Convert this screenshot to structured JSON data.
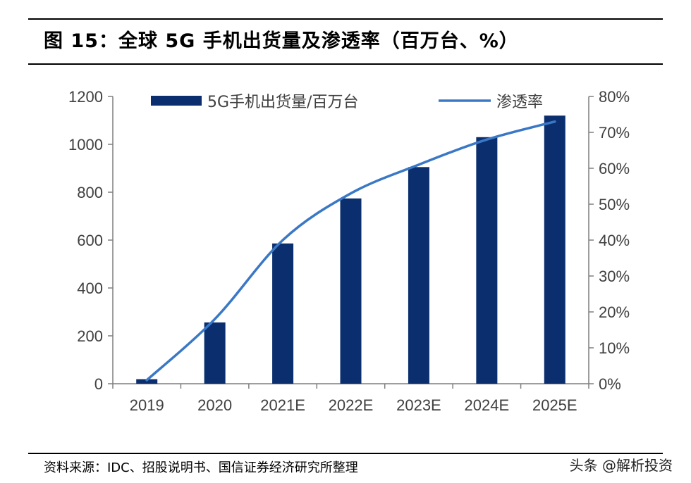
{
  "header": {
    "title": "图 15：全球 5G 手机出货量及渗透率（百万台、%）"
  },
  "footer": {
    "source": "资料来源：IDC、招股说明书、国信证券经济研究所整理",
    "watermark": "头条 @解析投资"
  },
  "colors": {
    "bar": "#0b2f6e",
    "line": "#3a78c6",
    "axis": "#7f7f7f",
    "text": "#404040"
  },
  "chart_data": {
    "type": "bar",
    "categories": [
      "2019",
      "2020",
      "2021E",
      "2022E",
      "2023E",
      "2024E",
      "2025E"
    ],
    "series": [
      {
        "name": "5G手机出货量/百万台",
        "type": "bar",
        "axis": "left",
        "values": [
          19,
          256,
          586,
          774,
          905,
          1030,
          1120
        ]
      },
      {
        "name": "渗透率",
        "type": "line",
        "axis": "right",
        "values": [
          1,
          18,
          40,
          53,
          61,
          68,
          73
        ]
      }
    ],
    "y_left": {
      "min": 0,
      "max": 1200,
      "ticks": [
        "0",
        "200",
        "400",
        "600",
        "800",
        "1000",
        "1200"
      ]
    },
    "y_right": {
      "min": 0,
      "max": 80,
      "ticks": [
        "0%",
        "10%",
        "20%",
        "30%",
        "40%",
        "50%",
        "60%",
        "70%",
        "80%"
      ]
    },
    "legend": "top",
    "grid": false
  }
}
